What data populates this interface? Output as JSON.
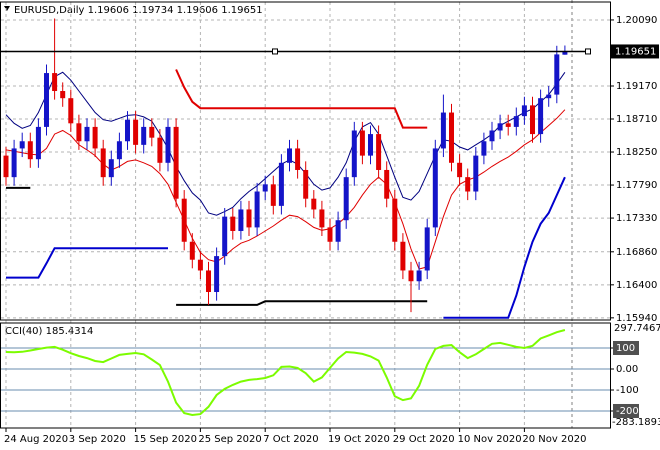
{
  "chart_data": [
    {
      "type": "candlestick",
      "title": "EURUSD,Daily 1.19606 1.19734 1.19606 1.19651",
      "categories": [
        "24 Aug 2020",
        null,
        null,
        null,
        null,
        null,
        null,
        null,
        "3 Sep 2020",
        null,
        null,
        null,
        null,
        null,
        null,
        null,
        "15 Sep 2020",
        null,
        null,
        null,
        null,
        null,
        null,
        null,
        "25 Sep 2020",
        null,
        null,
        null,
        null,
        null,
        null,
        null,
        "7 Oct 2020",
        null,
        null,
        null,
        null,
        null,
        null,
        null,
        "19 Oct 2020",
        null,
        null,
        null,
        null,
        null,
        null,
        null,
        "29 Oct 2020",
        null,
        null,
        null,
        null,
        null,
        null,
        null,
        "10 Nov 2020",
        null,
        null,
        null,
        null,
        null,
        null,
        null,
        "20 Nov 2020",
        null,
        null,
        null,
        null,
        null
      ],
      "open": [
        1.182,
        1.179,
        1.183,
        1.184,
        1.1815,
        1.186,
        1.1935,
        1.191,
        1.19,
        1.1865,
        1.184,
        1.186,
        1.183,
        1.179,
        1.1815,
        1.184,
        1.187,
        1.1835,
        1.186,
        1.1845,
        1.181,
        1.186,
        1.176,
        1.17,
        1.1675,
        1.166,
        1.163,
        1.168,
        1.1735,
        1.1715,
        1.1745,
        1.172,
        1.177,
        1.178,
        1.175,
        1.181,
        1.183,
        1.18,
        1.176,
        1.1745,
        1.172,
        1.17,
        1.173,
        1.179,
        1.1855,
        1.182,
        1.185,
        1.18,
        1.176,
        1.17,
        1.166,
        1.1645,
        1.166,
        1.172,
        1.183,
        1.188,
        1.181,
        1.179,
        1.177,
        1.182,
        1.184,
        1.1855,
        1.1865,
        1.186,
        1.1875,
        1.189,
        1.185,
        1.19,
        1.1905,
        1.19606
      ],
      "high": [
        1.1832,
        1.1842,
        1.1852,
        1.1852,
        1.1872,
        1.1947,
        1.2011,
        1.1922,
        1.1912,
        1.1877,
        1.1872,
        1.1872,
        1.1842,
        1.1827,
        1.1852,
        1.1882,
        1.1882,
        1.1872,
        1.1872,
        1.1857,
        1.1872,
        1.1872,
        1.1772,
        1.1712,
        1.1687,
        1.1672,
        1.1692,
        1.1747,
        1.1747,
        1.1757,
        1.1757,
        1.1782,
        1.1792,
        1.1792,
        1.1822,
        1.1842,
        1.1842,
        1.1812,
        1.1772,
        1.1757,
        1.1732,
        1.1742,
        1.1802,
        1.1867,
        1.1867,
        1.1862,
        1.1862,
        1.1812,
        1.1772,
        1.1712,
        1.1672,
        1.1672,
        1.1732,
        1.1842,
        1.1905,
        1.1892,
        1.1822,
        1.1802,
        1.1832,
        1.1852,
        1.1867,
        1.1877,
        1.1877,
        1.1887,
        1.1902,
        1.1902,
        1.1912,
        1.1917,
        1.1973,
        1.19734
      ],
      "low": [
        1.1778,
        1.1778,
        1.1818,
        1.1803,
        1.1803,
        1.1848,
        1.1898,
        1.1888,
        1.1853,
        1.1828,
        1.1828,
        1.1818,
        1.1778,
        1.1778,
        1.1803,
        1.1828,
        1.1823,
        1.1823,
        1.1833,
        1.1798,
        1.1798,
        1.1748,
        1.1688,
        1.1663,
        1.1648,
        1.1612,
        1.1618,
        1.1668,
        1.1703,
        1.1703,
        1.1708,
        1.1708,
        1.1758,
        1.1738,
        1.1738,
        1.1798,
        1.1788,
        1.1748,
        1.1733,
        1.1708,
        1.1688,
        1.1688,
        1.1718,
        1.1778,
        1.1808,
        1.1808,
        1.1788,
        1.1748,
        1.1688,
        1.1648,
        1.1602,
        1.1633,
        1.1648,
        1.1708,
        1.1818,
        1.1798,
        1.1778,
        1.1758,
        1.1758,
        1.1808,
        1.1828,
        1.1843,
        1.1848,
        1.1848,
        1.1863,
        1.1838,
        1.1838,
        1.1888,
        1.1893,
        1.19606
      ],
      "close": [
        1.179,
        1.183,
        1.184,
        1.1815,
        1.186,
        1.1935,
        1.191,
        1.19,
        1.1865,
        1.184,
        1.186,
        1.183,
        1.179,
        1.1815,
        1.184,
        1.187,
        1.1835,
        1.186,
        1.1845,
        1.181,
        1.186,
        1.176,
        1.17,
        1.1675,
        1.166,
        1.163,
        1.168,
        1.1735,
        1.1715,
        1.1745,
        1.172,
        1.177,
        1.178,
        1.175,
        1.181,
        1.183,
        1.18,
        1.176,
        1.1745,
        1.172,
        1.17,
        1.173,
        1.179,
        1.1855,
        1.182,
        1.185,
        1.18,
        1.176,
        1.17,
        1.166,
        1.1645,
        1.166,
        1.172,
        1.183,
        1.188,
        1.181,
        1.179,
        1.177,
        1.182,
        1.184,
        1.1855,
        1.1865,
        1.186,
        1.1875,
        1.189,
        1.185,
        1.19,
        1.1905,
        1.1961,
        1.19651
      ],
      "up_color": "#1414c8",
      "down_color": "#e00000",
      "lines": [
        {
          "color": "#000080",
          "width": 1,
          "values": [
            1.1877,
            1.1865,
            1.1858,
            1.1862,
            1.188,
            1.1905,
            1.193,
            1.1936,
            1.1925,
            1.191,
            1.1895,
            1.188,
            1.187,
            1.1868,
            1.1872,
            1.1876,
            1.1877,
            1.1874,
            1.1868,
            1.185,
            1.183,
            1.1805,
            1.1785,
            1.1768,
            1.1758,
            1.174,
            1.1737,
            1.1742,
            1.1748,
            1.176,
            1.177,
            1.1778,
            1.1788,
            1.1798,
            1.1808,
            1.1814,
            1.1808,
            1.1795,
            1.178,
            1.1772,
            1.1775,
            1.179,
            1.181,
            1.184,
            1.186,
            1.1866,
            1.185,
            1.182,
            1.179,
            1.1762,
            1.1758,
            1.177,
            1.1795,
            1.182,
            1.1842,
            1.184,
            1.1832,
            1.1828,
            1.1835,
            1.1842,
            1.185,
            1.1862,
            1.1868,
            1.1874,
            1.188,
            1.1885,
            1.1895,
            1.1905,
            1.192,
            1.1936
          ]
        },
        {
          "color": "#e00000",
          "width": 1,
          "values": [
            1.1828,
            1.1826,
            1.1824,
            1.1822,
            1.1821,
            1.183,
            1.185,
            1.1855,
            1.1848,
            1.1835,
            1.1828,
            1.182,
            1.1808,
            1.18,
            1.1805,
            1.1812,
            1.1814,
            1.181,
            1.1805,
            1.1795,
            1.178,
            1.1755,
            1.173,
            1.1705,
            1.1685,
            1.1675,
            1.1672,
            1.168,
            1.169,
            1.1698,
            1.1702,
            1.1708,
            1.1715,
            1.1722,
            1.173,
            1.1737,
            1.1735,
            1.1728,
            1.172,
            1.1716,
            1.1718,
            1.1725,
            1.1735,
            1.1748,
            1.1765,
            1.178,
            1.179,
            1.178,
            1.1755,
            1.1725,
            1.169,
            1.1662,
            1.1665,
            1.17,
            1.1735,
            1.1765,
            1.178,
            1.1786,
            1.179,
            1.1797,
            1.1805,
            1.1812,
            1.1818,
            1.1826,
            1.1835,
            1.1842,
            1.1852,
            1.1862,
            1.1872,
            1.1884
          ]
        },
        {
          "color": "#e00000",
          "width": 2,
          "values": [
            null,
            null,
            null,
            null,
            null,
            null,
            null,
            null,
            null,
            null,
            null,
            null,
            null,
            null,
            null,
            null,
            null,
            null,
            null,
            null,
            null,
            1.194,
            1.1915,
            1.1895,
            1.1886,
            1.1886,
            1.1886,
            1.1886,
            1.1886,
            1.1886,
            1.1886,
            1.1886,
            1.1886,
            1.1886,
            1.1886,
            1.1886,
            1.1886,
            1.1886,
            1.1886,
            1.1886,
            1.1886,
            1.1886,
            1.1886,
            1.1886,
            1.1886,
            1.1886,
            1.1886,
            1.1886,
            1.1886,
            1.1859,
            1.1859,
            1.1859,
            1.1859,
            null,
            null,
            null,
            null,
            null,
            null,
            null,
            null,
            null,
            null,
            null,
            null,
            null,
            null,
            null,
            null,
            null
          ]
        },
        {
          "color": "#000000",
          "width": 2,
          "values": [
            1.1775,
            1.1775,
            1.1775,
            1.1775,
            null,
            null,
            null,
            null,
            null,
            null,
            null,
            null,
            null,
            null,
            null,
            null,
            null,
            null,
            null,
            null,
            null,
            1.1612,
            1.1612,
            1.1612,
            1.1612,
            1.1612,
            1.1612,
            1.1612,
            1.1612,
            1.1612,
            1.1612,
            1.1612,
            1.1617,
            1.1617,
            1.1617,
            1.1617,
            1.1617,
            1.1617,
            1.1617,
            1.1617,
            1.1617,
            1.1617,
            1.1617,
            1.1617,
            1.1617,
            1.1617,
            1.1617,
            1.1617,
            1.1617,
            1.1617,
            1.1617,
            1.1617,
            1.1617,
            null,
            null,
            null,
            null,
            null,
            null,
            null,
            null,
            null,
            null,
            null,
            null,
            null,
            null,
            null,
            null,
            null
          ]
        },
        {
          "color": "#0000cd",
          "width": 2,
          "values": [
            1.165,
            1.165,
            1.165,
            1.165,
            1.165,
            1.167,
            1.1691,
            1.1691,
            1.1691,
            1.1691,
            1.1691,
            1.1691,
            1.1691,
            1.1691,
            1.1691,
            1.1691,
            1.1691,
            1.1691,
            1.1691,
            1.1691,
            1.1691,
            null,
            null,
            null,
            null,
            null,
            null,
            null,
            null,
            null,
            null,
            null,
            null,
            null,
            null,
            null,
            null,
            null,
            null,
            null,
            null,
            null,
            null,
            null,
            null,
            null,
            null,
            null,
            null,
            null,
            null,
            null,
            null,
            null,
            1.1594,
            1.1594,
            1.1594,
            1.1594,
            1.1594,
            1.1594,
            1.1594,
            1.1594,
            1.1594,
            1.1625,
            1.1665,
            1.17,
            1.1725,
            1.174,
            1.1765,
            1.179
          ]
        }
      ],
      "ylim": [
        1.1591,
        1.2034
      ],
      "yticks": [
        {
          "value": 1.2009,
          "label": "1.20090"
        },
        {
          "value": 1.1917,
          "label": "1.19170"
        },
        {
          "value": 1.1871,
          "label": "1.18710"
        },
        {
          "value": 1.1825,
          "label": "1.18250"
        },
        {
          "value": 1.1779,
          "label": "1.17790"
        },
        {
          "value": 1.1733,
          "label": "1.17330"
        },
        {
          "value": 1.1686,
          "label": "1.16860"
        },
        {
          "value": 1.164,
          "label": "1.16400"
        },
        {
          "value": 1.1594,
          "label": "1.15940"
        }
      ],
      "grid_style": "dashed"
    },
    {
      "type": "line",
      "title": "CCI(40) 185.4314",
      "values": [
        81,
        80,
        82,
        88,
        95,
        102,
        105,
        92,
        75,
        62,
        52,
        38,
        33,
        50,
        67,
        72,
        76,
        70,
        45,
        19,
        -60,
        -160,
        -210,
        -219,
        -215,
        -180,
        -124,
        -95,
        -76,
        -60,
        -52,
        -48,
        -43,
        -30,
        10,
        12,
        5,
        -20,
        -60,
        -40,
        5,
        50,
        81,
        78,
        72,
        60,
        40,
        -40,
        -130,
        -148,
        -140,
        -80,
        20,
        95,
        110,
        114,
        80,
        52,
        70,
        95,
        120,
        124,
        115,
        105,
        100,
        110,
        145,
        160,
        175,
        185.4314
      ],
      "color": "#7cfc00",
      "ylim": [
        -281,
        219
      ],
      "yticks": [
        100,
        {
          "value": 0,
          "label": "0.00"
        },
        -100,
        -200
      ],
      "max_label": "297.7467",
      "min_label": "-283.1893",
      "grid_style": "solid"
    }
  ]
}
